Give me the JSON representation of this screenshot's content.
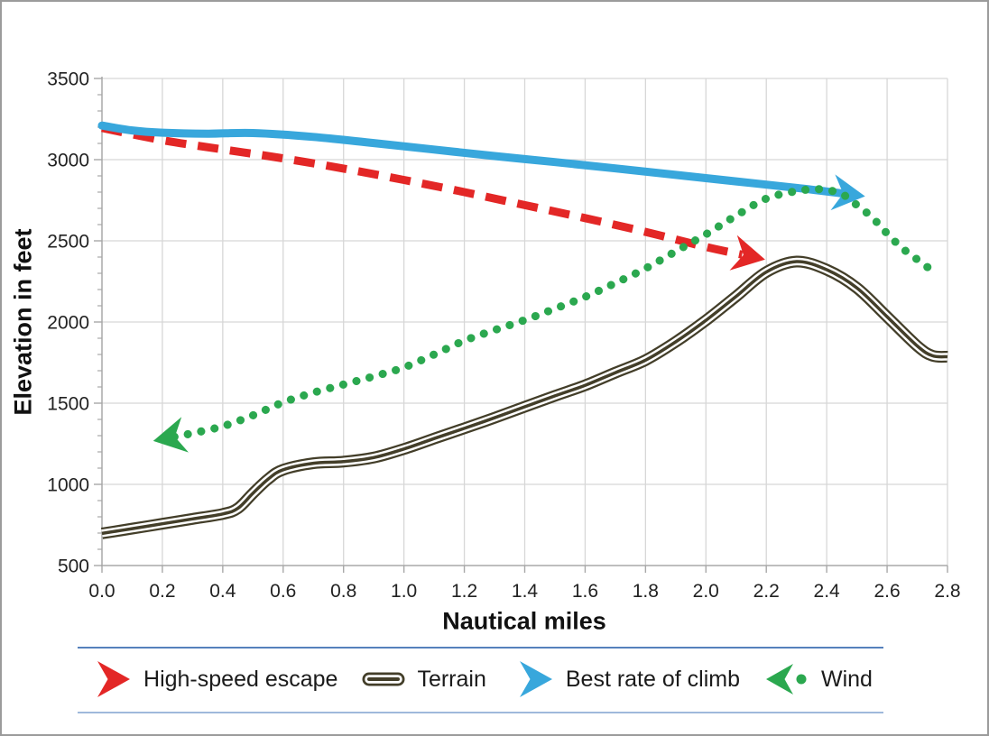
{
  "axes": {
    "y_title": "Elevation in feet",
    "x_title": "Nautical miles"
  },
  "chart_data": {
    "type": "line",
    "title": "",
    "xlabel": "Nautical miles",
    "ylabel": "Elevation in feet",
    "xlim": [
      0.0,
      2.8
    ],
    "ylim": [
      500,
      3500
    ],
    "x_ticks": [
      "0.0",
      "0.2",
      "0.4",
      "0.6",
      "0.8",
      "1.0",
      "1.2",
      "1.4",
      "1.6",
      "1.8",
      "2.0",
      "2.2",
      "2.4",
      "2.6",
      "2.8"
    ],
    "x_tick_values": [
      0.0,
      0.2,
      0.4,
      0.6,
      0.8,
      1.0,
      1.2,
      1.4,
      1.6,
      1.8,
      2.0,
      2.2,
      2.4,
      2.6,
      2.8
    ],
    "y_ticks": [
      "500",
      "1000",
      "1500",
      "2000",
      "2500",
      "3000",
      "3500"
    ],
    "y_tick_values": [
      500,
      1000,
      1500,
      2000,
      2500,
      3000,
      3500
    ],
    "y_minor_tick_step": 100,
    "grid": true,
    "grid_color": "#d7d7d7",
    "axis_color": "#a8a8a8",
    "tick_label_color": "#222222",
    "legend_position": "bottom",
    "series": [
      {
        "name": "Terrain",
        "style": "road",
        "color": "#433e29",
        "points": [
          [
            0,
            698
          ],
          [
            0.1,
            727
          ],
          [
            0.2,
            757
          ],
          [
            0.3,
            787
          ],
          [
            0.4,
            818
          ],
          [
            0.45,
            852
          ],
          [
            0.5,
            945
          ],
          [
            0.55,
            1032
          ],
          [
            0.6,
            1090
          ],
          [
            0.7,
            1130
          ],
          [
            0.8,
            1140
          ],
          [
            0.9,
            1165
          ],
          [
            1.0,
            1218
          ],
          [
            1.1,
            1282
          ],
          [
            1.2,
            1345
          ],
          [
            1.3,
            1410
          ],
          [
            1.4,
            1478
          ],
          [
            1.5,
            1545
          ],
          [
            1.6,
            1610
          ],
          [
            1.7,
            1688
          ],
          [
            1.8,
            1765
          ],
          [
            1.9,
            1878
          ],
          [
            2.0,
            2010
          ],
          [
            2.1,
            2158
          ],
          [
            2.2,
            2308
          ],
          [
            2.3,
            2372
          ],
          [
            2.4,
            2322
          ],
          [
            2.5,
            2210
          ],
          [
            2.6,
            2032
          ],
          [
            2.7,
            1852
          ],
          [
            2.75,
            1792
          ],
          [
            2.8,
            1786
          ]
        ]
      },
      {
        "name": "High-speed escape",
        "style": "dashed",
        "color": "#e32726",
        "arrow": "end",
        "points": [
          [
            0,
            3195
          ],
          [
            0.2,
            3120
          ],
          [
            0.4,
            3063
          ],
          [
            0.6,
            3008
          ],
          [
            0.8,
            2945
          ],
          [
            1.0,
            2875
          ],
          [
            1.2,
            2800
          ],
          [
            1.4,
            2720
          ],
          [
            1.6,
            2640
          ],
          [
            1.8,
            2555
          ],
          [
            2.0,
            2462
          ],
          [
            2.12,
            2415
          ]
        ]
      },
      {
        "name": "Best rate of climb",
        "style": "solid",
        "color": "#38a7dc",
        "arrow": "end",
        "points": [
          [
            0,
            3210
          ],
          [
            0.1,
            3180
          ],
          [
            0.2,
            3166
          ],
          [
            0.35,
            3160
          ],
          [
            0.5,
            3164
          ],
          [
            0.7,
            3140
          ],
          [
            0.9,
            3102
          ],
          [
            1.1,
            3062
          ],
          [
            1.3,
            3022
          ],
          [
            1.5,
            2985
          ],
          [
            1.7,
            2946
          ],
          [
            1.9,
            2906
          ],
          [
            2.1,
            2866
          ],
          [
            2.3,
            2826
          ],
          [
            2.45,
            2792
          ]
        ]
      },
      {
        "name": "Wind",
        "style": "dotted",
        "color": "#2ba84f",
        "arrow": "start",
        "points": [
          [
            0.24,
            1293
          ],
          [
            0.3,
            1315
          ],
          [
            0.4,
            1358
          ],
          [
            0.5,
            1425
          ],
          [
            0.6,
            1505
          ],
          [
            0.7,
            1565
          ],
          [
            0.8,
            1615
          ],
          [
            0.9,
            1665
          ],
          [
            1.0,
            1720
          ],
          [
            1.1,
            1800
          ],
          [
            1.2,
            1885
          ],
          [
            1.3,
            1950
          ],
          [
            1.4,
            2012
          ],
          [
            1.5,
            2082
          ],
          [
            1.6,
            2155
          ],
          [
            1.7,
            2240
          ],
          [
            1.8,
            2330
          ],
          [
            1.9,
            2435
          ],
          [
            2.0,
            2540
          ],
          [
            2.1,
            2655
          ],
          [
            2.2,
            2760
          ],
          [
            2.3,
            2806
          ],
          [
            2.38,
            2818
          ],
          [
            2.45,
            2788
          ],
          [
            2.5,
            2720
          ],
          [
            2.55,
            2645
          ],
          [
            2.6,
            2545
          ],
          [
            2.65,
            2455
          ],
          [
            2.7,
            2385
          ],
          [
            2.75,
            2315
          ]
        ]
      }
    ]
  },
  "legend": {
    "separator_top_color": "#5581bc",
    "separator_bottom_color": "#9fb9db"
  }
}
